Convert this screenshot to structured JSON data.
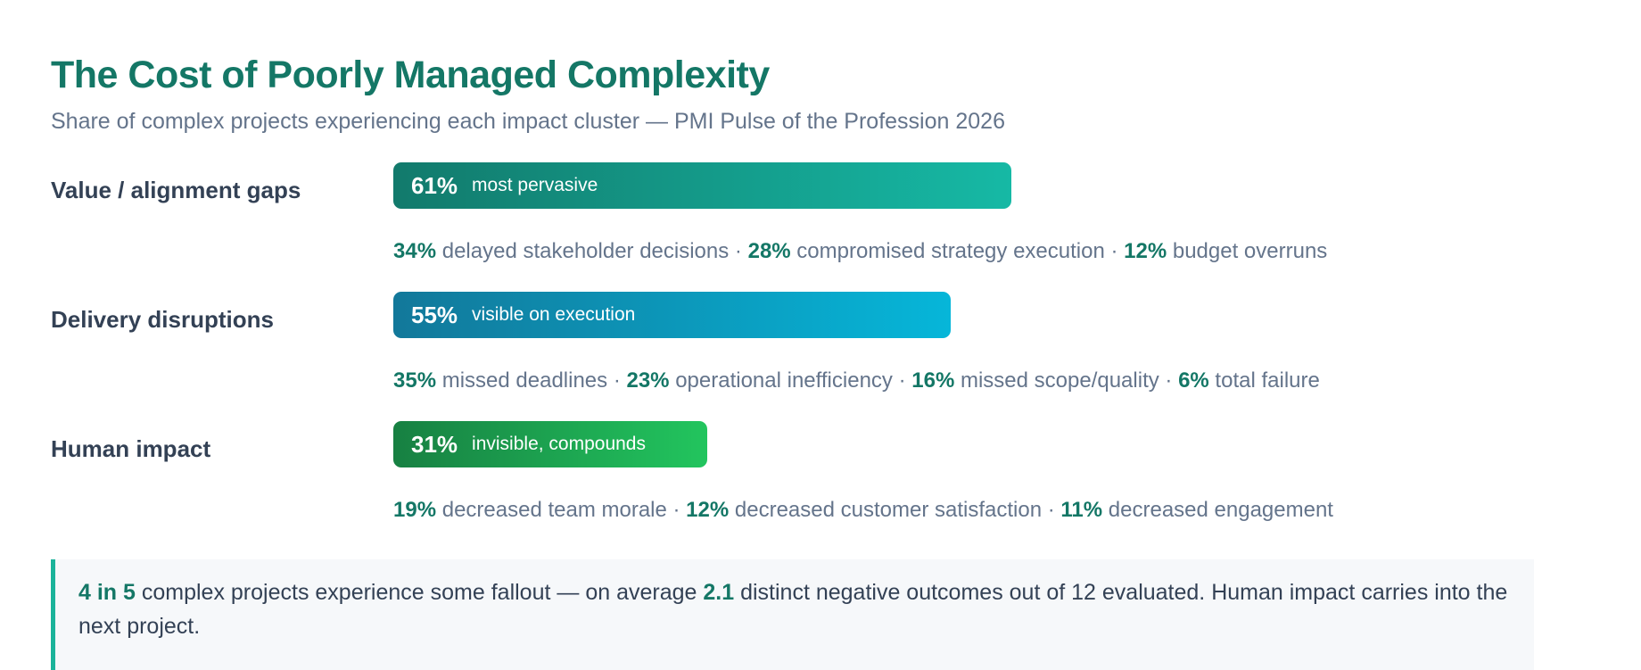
{
  "title": "The Cost of Poorly Managed Complexity",
  "subtitle": "Share of complex projects experiencing each impact cluster — PMI Pulse of the Profession 2026",
  "chart_data": {
    "type": "bar",
    "orientation": "horizontal",
    "title": "The Cost of Poorly Managed Complexity",
    "subtitle": "Share of complex projects experiencing each impact cluster — PMI Pulse of the Profession 2026",
    "xlim": [
      0,
      100
    ],
    "bars": [
      {
        "label": "Value / alignment gaps",
        "value": 61,
        "value_label": "61%",
        "note": "most pervasive",
        "color_from": "#127a6c",
        "color_to": "#16b9a5",
        "details": [
          {
            "value": "34%",
            "text": "delayed stakeholder decisions"
          },
          {
            "value": "28%",
            "text": "compromised strategy execution"
          },
          {
            "value": "12%",
            "text": "budget overruns"
          }
        ]
      },
      {
        "label": "Delivery disruptions",
        "value": 55,
        "value_label": "55%",
        "note": "visible on execution",
        "color_from": "#12789a",
        "color_to": "#06b6d9",
        "details": [
          {
            "value": "35%",
            "text": "missed deadlines"
          },
          {
            "value": "23%",
            "text": "operational inefficiency"
          },
          {
            "value": "16%",
            "text": "missed scope/quality"
          },
          {
            "value": "6%",
            "text": "total failure"
          }
        ]
      },
      {
        "label": "Human impact",
        "value": 31,
        "value_label": "31%",
        "note": "invisible, compounds",
        "color_from": "#178042",
        "color_to": "#22c55e",
        "details": [
          {
            "value": "19%",
            "text": "decreased team morale"
          },
          {
            "value": "12%",
            "text": "decreased customer satisfaction"
          },
          {
            "value": "11%",
            "text": "decreased engagement"
          }
        ]
      }
    ]
  },
  "separator": " · ",
  "callout": {
    "highlight_1": "4 in 5",
    "text_1": " complex projects experience some fallout — on average ",
    "highlight_2": "2.1",
    "text_2": " distinct negative outcomes out of 12 evaluated. Human impact carries into the next project."
  },
  "colors": {
    "accent": "#147766",
    "callout_border": "#1bb39a",
    "callout_bg": "#f6f8fa"
  }
}
